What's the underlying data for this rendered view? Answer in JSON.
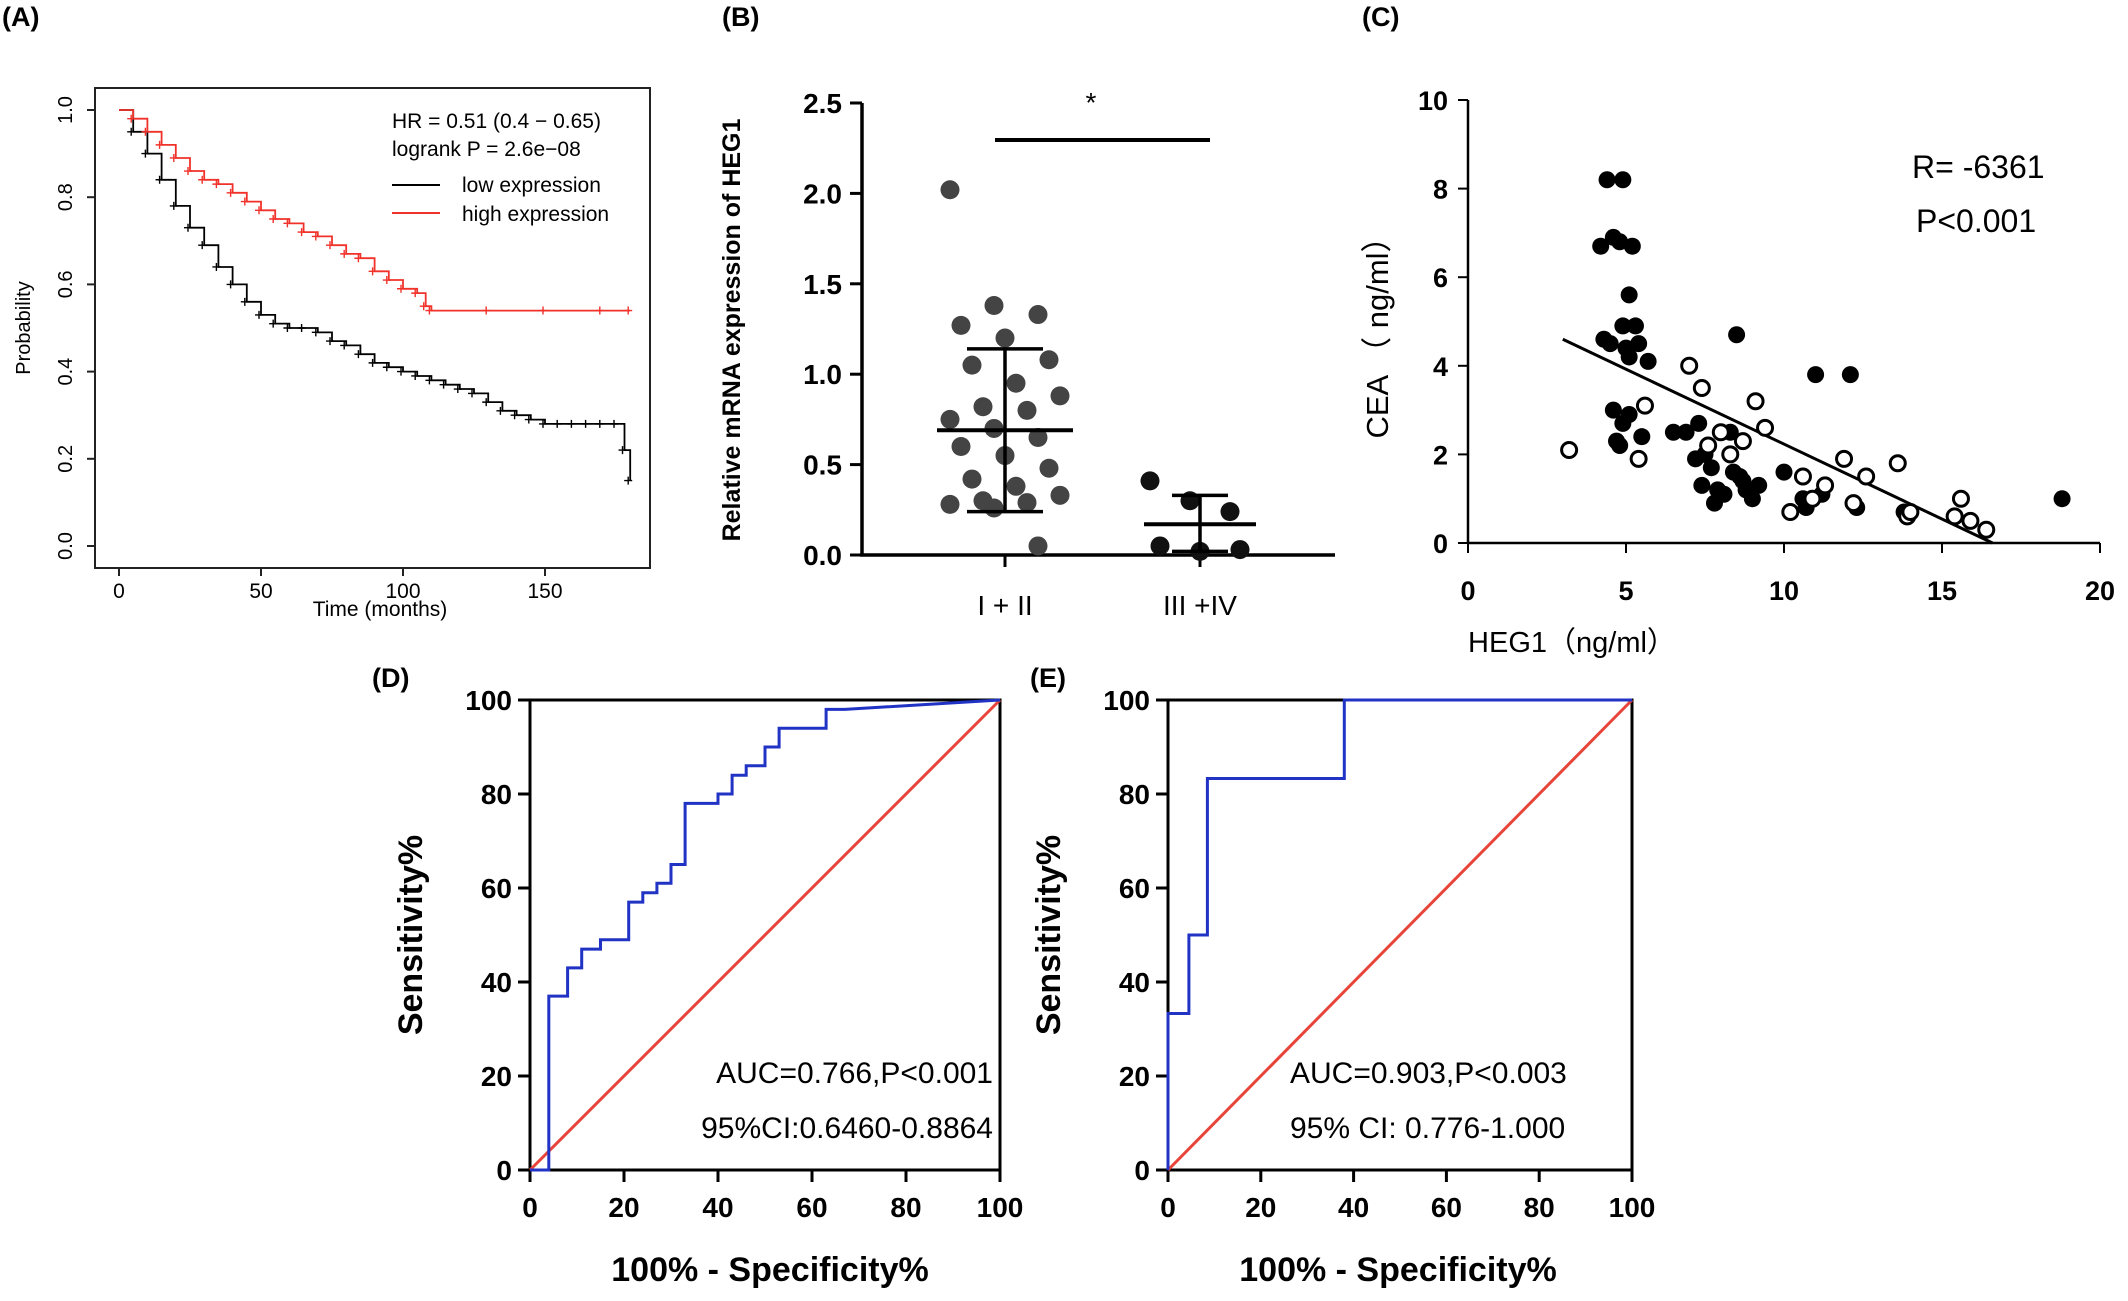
{
  "figure": {
    "panel_labels": [
      "(A)",
      "(B)",
      "(C)",
      "(D)",
      "(E)"
    ]
  },
  "chart_data": [
    {
      "panel": "(A)",
      "type": "line",
      "xlabel": "Time (months)",
      "ylabel": "Probability",
      "xlim": [
        -5,
        185
      ],
      "ylim": [
        0,
        1.0
      ],
      "xticks": [
        "0",
        "50",
        "100",
        "150"
      ],
      "yticks": [
        "0.0",
        "0.2",
        "0.4",
        "0.6",
        "0.8",
        "1.0"
      ],
      "annotations": [
        "HR = 0.51 (0.4 − 0.65)",
        "logrank P = 2.6e−08"
      ],
      "legend_position": "top-right",
      "series": [
        {
          "name": "low expression",
          "color": "#000000",
          "x": [
            0,
            5,
            10,
            15,
            20,
            25,
            30,
            35,
            40,
            45,
            50,
            55,
            60,
            65,
            70,
            75,
            80,
            85,
            90,
            95,
            100,
            105,
            110,
            115,
            120,
            125,
            130,
            135,
            140,
            145,
            150,
            155,
            160,
            165,
            170,
            175,
            178,
            180
          ],
          "y": [
            1.0,
            0.95,
            0.9,
            0.84,
            0.78,
            0.73,
            0.69,
            0.64,
            0.6,
            0.56,
            0.53,
            0.51,
            0.5,
            0.5,
            0.49,
            0.47,
            0.46,
            0.44,
            0.42,
            0.41,
            0.4,
            0.39,
            0.38,
            0.37,
            0.36,
            0.35,
            0.33,
            0.31,
            0.3,
            0.29,
            0.28,
            0.28,
            0.28,
            0.28,
            0.28,
            0.28,
            0.22,
            0.15
          ]
        },
        {
          "name": "high expression",
          "color": "#f0322a",
          "x": [
            0,
            5,
            10,
            15,
            20,
            25,
            30,
            35,
            40,
            45,
            50,
            55,
            60,
            65,
            70,
            75,
            80,
            85,
            90,
            95,
            100,
            105,
            108,
            110,
            130,
            150,
            170,
            180
          ],
          "y": [
            1.0,
            0.98,
            0.95,
            0.92,
            0.89,
            0.86,
            0.84,
            0.83,
            0.81,
            0.79,
            0.77,
            0.75,
            0.74,
            0.72,
            0.71,
            0.69,
            0.67,
            0.66,
            0.63,
            0.61,
            0.59,
            0.58,
            0.55,
            0.54,
            0.54,
            0.54,
            0.54,
            0.54
          ]
        }
      ]
    },
    {
      "panel": "(B)",
      "type": "scatter",
      "ylabel": "Relative mRNA expression of HEG1",
      "categories": [
        "I + II",
        "III +IV"
      ],
      "ylim": [
        0,
        2.5
      ],
      "yticks": [
        "0.0",
        "0.5",
        "1.0",
        "1.5",
        "2.0",
        "2.5"
      ],
      "significance": "*",
      "series": [
        {
          "category": "I + II",
          "mean": 0.69,
          "sd_low": 0.24,
          "sd_high": 1.14,
          "values": [
            2.02,
            1.38,
            1.33,
            1.27,
            1.2,
            1.08,
            1.05,
            0.95,
            0.88,
            0.82,
            0.8,
            0.75,
            0.7,
            0.65,
            0.6,
            0.55,
            0.48,
            0.42,
            0.38,
            0.33,
            0.3,
            0.29,
            0.28,
            0.26,
            0.05
          ]
        },
        {
          "category": "III +IV",
          "mean": 0.17,
          "sd_low": 0.02,
          "sd_high": 0.33,
          "values": [
            0.41,
            0.3,
            0.24,
            0.05,
            0.02,
            0.03
          ]
        }
      ]
    },
    {
      "panel": "(C)",
      "type": "scatter",
      "xlabel": "HEG1（ng/ml）",
      "ylabel": "CEA （ ng/ml）",
      "xlim": [
        0,
        20
      ],
      "ylim": [
        0,
        10
      ],
      "xticks": [
        "0",
        "5",
        "10",
        "15",
        "20"
      ],
      "yticks": [
        "0",
        "2",
        "4",
        "6",
        "8",
        "10"
      ],
      "annotations": [
        "R= -6361",
        "P<0.001"
      ],
      "regression_line": {
        "x": [
          3.0,
          16.6
        ],
        "y": [
          4.6,
          0.0
        ]
      },
      "series": [
        {
          "marker": "filled",
          "x": [
            4.4,
            4.9,
            4.6,
            4.8,
            4.2,
            5.2,
            5.1,
            5.3,
            4.9,
            5.4,
            4.5,
            4.3,
            5.0,
            5.1,
            5.7,
            4.6,
            5.1,
            4.9,
            4.7,
            5.5,
            4.8,
            6.5,
            6.9,
            7.2,
            7.5,
            7.7,
            7.4,
            7.9,
            8.1,
            7.3,
            8.3,
            8.6,
            8.4,
            8.7,
            8.8,
            7.8,
            9.0,
            9.2,
            8.5,
            10.0,
            10.6,
            11.0,
            10.7,
            11.2,
            12.3,
            12.1,
            13.8,
            18.8
          ],
          "y": [
            8.2,
            8.2,
            6.9,
            6.8,
            6.7,
            6.7,
            5.6,
            4.9,
            4.9,
            4.5,
            4.5,
            4.6,
            4.4,
            4.2,
            4.1,
            3.0,
            2.9,
            2.7,
            2.3,
            2.4,
            2.2,
            2.5,
            2.5,
            1.9,
            2.0,
            1.7,
            1.3,
            1.2,
            1.1,
            2.7,
            2.5,
            1.5,
            1.6,
            1.4,
            1.2,
            0.9,
            1.0,
            1.3,
            4.7,
            1.6,
            1.0,
            3.8,
            0.8,
            1.1,
            0.8,
            3.8,
            0.7,
            1.0
          ]
        },
        {
          "marker": "open",
          "x": [
            3.2,
            5.4,
            5.6,
            7.0,
            7.4,
            7.6,
            8.0,
            8.3,
            8.7,
            9.1,
            9.4,
            10.2,
            10.6,
            11.3,
            11.9,
            12.2,
            12.6,
            13.6,
            13.9,
            15.4,
            15.6,
            15.9,
            16.4,
            10.9,
            14.0
          ],
          "y": [
            2.1,
            1.9,
            3.1,
            4.0,
            3.5,
            2.2,
            2.5,
            2.0,
            2.3,
            3.2,
            2.6,
            0.7,
            1.5,
            1.3,
            1.9,
            0.9,
            1.5,
            1.8,
            0.6,
            0.6,
            1.0,
            0.5,
            0.3,
            1.0,
            0.7
          ]
        }
      ]
    },
    {
      "panel": "(D)",
      "type": "line",
      "xlabel": "100% - Specificity%",
      "ylabel": "Sensitivity%",
      "xlim": [
        0,
        100
      ],
      "ylim": [
        0,
        100
      ],
      "xticks": [
        "0",
        "20",
        "40",
        "60",
        "80",
        "100"
      ],
      "yticks": [
        "0",
        "20",
        "40",
        "60",
        "80",
        "100"
      ],
      "annotations": [
        "AUC=0.766,P<0.001",
        "95%CI:0.6460-0.8864"
      ],
      "series": [
        {
          "color": "#2133c4",
          "x": [
            0,
            4,
            4,
            8,
            8,
            11,
            11,
            15,
            15,
            18,
            18,
            21,
            21,
            24,
            24,
            27,
            27,
            30,
            30,
            33,
            33,
            36,
            36,
            40,
            40,
            43,
            43,
            46,
            46,
            50,
            50,
            53,
            53,
            56,
            56,
            60,
            60,
            63,
            63,
            67,
            67,
            100
          ],
          "y": [
            0,
            0,
            37,
            37,
            43,
            43,
            47,
            47,
            49,
            49,
            49,
            49,
            57,
            57,
            59,
            59,
            61,
            61,
            65,
            65,
            78,
            78,
            78,
            78,
            80,
            80,
            84,
            84,
            86,
            86,
            90,
            90,
            94,
            94,
            94,
            94,
            94,
            94,
            98,
            98,
            98,
            100
          ]
        },
        {
          "color": "#e8453a",
          "x": [
            0,
            100
          ],
          "y": [
            0,
            100
          ]
        }
      ]
    },
    {
      "panel": "(E)",
      "type": "line",
      "xlabel": "100% - Specificity%",
      "ylabel": "Sensitivity%",
      "xlim": [
        0,
        100
      ],
      "ylim": [
        0,
        100
      ],
      "xticks": [
        "0",
        "20",
        "40",
        "60",
        "80",
        "100"
      ],
      "yticks": [
        "0",
        "20",
        "40",
        "60",
        "80",
        "100"
      ],
      "annotations": [
        "AUC=0.903,P<0.003",
        "95% CI: 0.776-1.000"
      ],
      "series": [
        {
          "color": "#2133c4",
          "x": [
            0,
            0,
            4.5,
            4.5,
            8.5,
            8.5,
            38,
            38,
            100
          ],
          "y": [
            0,
            33.3,
            33.3,
            50,
            50,
            83.3,
            83.3,
            100,
            100
          ]
        },
        {
          "color": "#e8453a",
          "x": [
            0,
            100
          ],
          "y": [
            0,
            100
          ]
        }
      ]
    }
  ]
}
